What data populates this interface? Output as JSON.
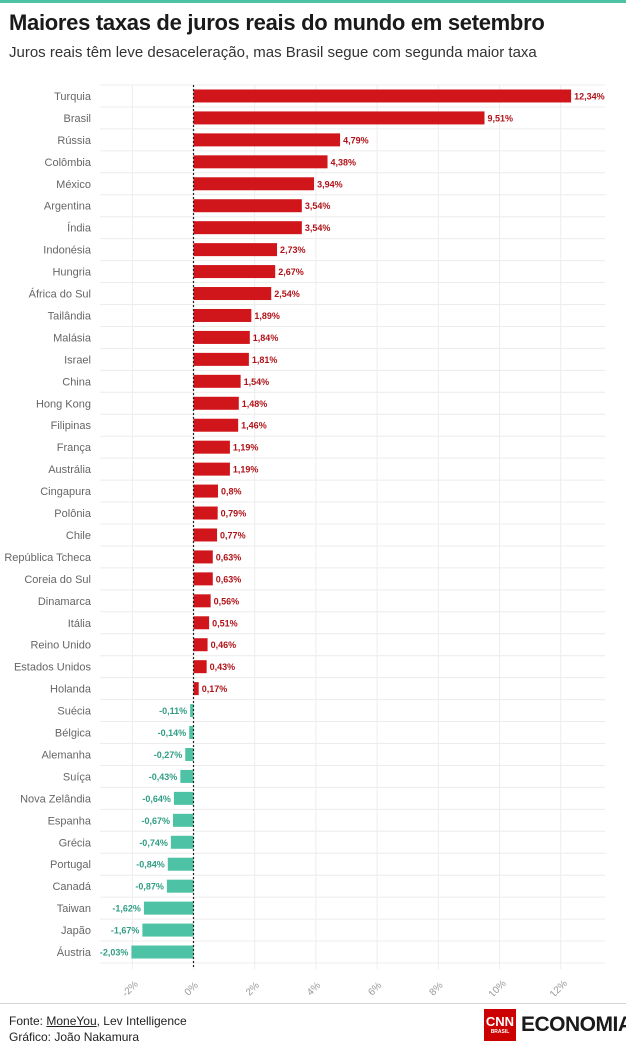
{
  "header": {
    "title": "Maiores taxas de juros reais do mundo em setembro",
    "subtitle": "Juros reais têm leve desaceleração, mas Brasil segue com segunda maior taxa"
  },
  "footer": {
    "source_prefix": "Fonte: ",
    "source_link": "MoneYou",
    "source_rest": ", Lev Intelligence",
    "credit": "Gráfico: João Nakamura"
  },
  "logo": {
    "brand": "CNN",
    "brand_sub": "BRASIL",
    "section": "ECONOMIA"
  },
  "colors": {
    "positive": "#d0161b",
    "negative": "#4ec2a5",
    "positive_label": "#b01218",
    "negative_label": "#2f9e84"
  },
  "chart_data": {
    "type": "bar",
    "orientation": "horizontal",
    "title": "Maiores taxas de juros reais do mundo em setembro",
    "subtitle": "Juros reais têm leve desaceleração, mas Brasil segue com segunda maior taxa",
    "xlim": [
      -3,
      13.5
    ],
    "x_ticks": [
      -2,
      0,
      2,
      4,
      6,
      8,
      10,
      12
    ],
    "x_tick_labels": [
      "-2%",
      "0%",
      "2%",
      "4%",
      "6%",
      "8%",
      "10%",
      "12%"
    ],
    "grid": true,
    "zero_line": "dotted",
    "categories": [
      "Turquia",
      "Brasil",
      "Rússia",
      "Colômbia",
      "México",
      "Argentina",
      "Índia",
      "Indonésia",
      "Hungria",
      "África do Sul",
      "Tailândia",
      "Malásia",
      "Israel",
      "China",
      "Hong Kong",
      "Filipinas",
      "França",
      "Austrália",
      "Cingapura",
      "Polônia",
      "Chile",
      "República Tcheca",
      "Coreia do Sul",
      "Dinamarca",
      "Itália",
      "Reino Unido",
      "Estados Unidos",
      "Holanda",
      "Suécia",
      "Bélgica",
      "Alemanha",
      "Suíça",
      "Nova Zelândia",
      "Espanha",
      "Grécia",
      "Portugal",
      "Canadá",
      "Taiwan",
      "Japão",
      "Áustria"
    ],
    "values": [
      12.34,
      9.51,
      4.79,
      4.38,
      3.94,
      3.54,
      3.54,
      2.73,
      2.67,
      2.54,
      1.89,
      1.84,
      1.81,
      1.54,
      1.48,
      1.46,
      1.19,
      1.19,
      0.8,
      0.79,
      0.77,
      0.63,
      0.63,
      0.56,
      0.51,
      0.46,
      0.43,
      0.17,
      -0.11,
      -0.14,
      -0.27,
      -0.43,
      -0.64,
      -0.67,
      -0.74,
      -0.84,
      -0.87,
      -1.62,
      -1.67,
      -2.03
    ],
    "value_labels": [
      "12,34%",
      "9,51%",
      "4,79%",
      "4,38%",
      "3,94%",
      "3,54%",
      "3,54%",
      "2,73%",
      "2,67%",
      "2,54%",
      "1,89%",
      "1,84%",
      "1,81%",
      "1,54%",
      "1,48%",
      "1,46%",
      "1,19%",
      "1,19%",
      "0,8%",
      "0,79%",
      "0,77%",
      "0,63%",
      "0,63%",
      "0,56%",
      "0,51%",
      "0,46%",
      "0,43%",
      "0,17%",
      "-0,11%",
      "-0,14%",
      "-0,27%",
      "-0,43%",
      "-0,64%",
      "-0,67%",
      "-0,74%",
      "-0,84%",
      "-0,87%",
      "-1,62%",
      "-1,67%",
      "-2,03%"
    ]
  }
}
